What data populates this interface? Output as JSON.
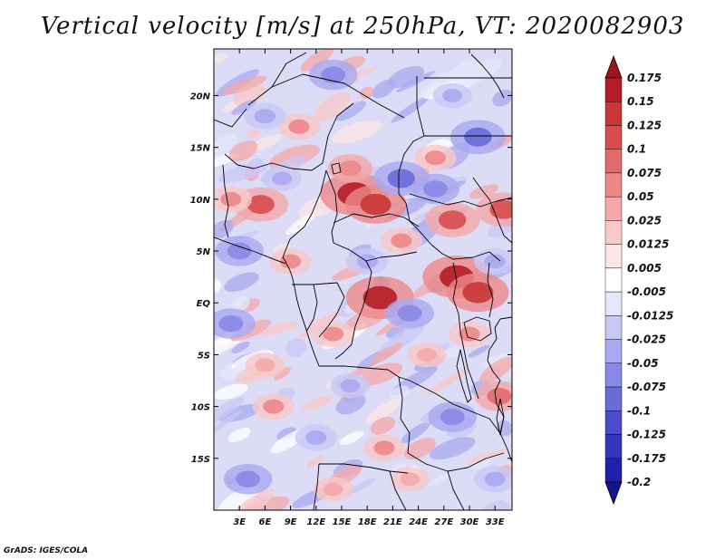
{
  "chart_data": {
    "type": "heatmap",
    "title": "Vertical velocity [m/s] at 250hPa, VT: 2020082903",
    "variable": "Vertical velocity",
    "units": "m/s",
    "level": "250hPa",
    "valid_time": "2020082903",
    "x_axis": {
      "min": 0,
      "max": 35,
      "ticks": [
        3,
        6,
        9,
        12,
        15,
        18,
        21,
        24,
        27,
        30,
        33
      ],
      "tick_labels": [
        "3E",
        "6E",
        "9E",
        "12E",
        "15E",
        "18E",
        "21E",
        "24E",
        "27E",
        "30E",
        "33E"
      ]
    },
    "y_axis": {
      "min": -20,
      "max": 24.5,
      "ticks": [
        20,
        15,
        10,
        5,
        0,
        -5,
        -10,
        -15
      ],
      "tick_labels": [
        "20N",
        "15N",
        "10N",
        "5N",
        "EQ",
        "5S",
        "10S",
        "15S"
      ]
    },
    "colorbar": {
      "orientation": "vertical",
      "levels": [
        0.175,
        0.15,
        0.125,
        0.1,
        0.075,
        0.05,
        0.025,
        0.0125,
        0.005,
        -0.005,
        -0.0125,
        -0.025,
        -0.05,
        -0.075,
        -0.1,
        -0.125,
        -0.175,
        -0.2
      ],
      "labels": [
        "0.175",
        "0.15",
        "0.125",
        "0.1",
        "0.075",
        "0.05",
        "0.025",
        "0.0125",
        "0.005",
        "-0.005",
        "-0.0125",
        "-0.025",
        "-0.05",
        "-0.075",
        "-0.1",
        "-0.125",
        "-0.175",
        "-0.2"
      ],
      "colors": [
        "#a0141e",
        "#b51c26",
        "#c83636",
        "#d84c4c",
        "#e36a6a",
        "#ec8888",
        "#f4a8a8",
        "#f9c8c8",
        "#fde6e6",
        "#ffffff",
        "#e6e6fb",
        "#c8c8f6",
        "#a9a9ef",
        "#8888e6",
        "#6a6ad9",
        "#4c4cc9",
        "#3636b8",
        "#2020a8",
        "#14148c"
      ]
    },
    "hotspots": [
      {
        "lon": 16.5,
        "lat": 10.5,
        "value": 0.15
      },
      {
        "lon": 19.0,
        "lat": 9.5,
        "value": 0.125
      },
      {
        "lon": 19.5,
        "lat": 0.5,
        "value": 0.15
      },
      {
        "lon": 28.5,
        "lat": 2.5,
        "value": 0.15
      },
      {
        "lon": 31.0,
        "lat": 1.0,
        "value": 0.125
      },
      {
        "lon": 28.0,
        "lat": 8.0,
        "value": 0.1
      },
      {
        "lon": 5.5,
        "lat": 9.5,
        "value": 0.1
      },
      {
        "lon": 34.0,
        "lat": 9.0,
        "value": 0.1
      },
      {
        "lon": 33.5,
        "lat": -9.0,
        "value": 0.075
      },
      {
        "lon": 9.0,
        "lat": 4.0,
        "value": 0.05
      },
      {
        "lon": 2.0,
        "lat": 10.0,
        "value": 0.05
      },
      {
        "lon": 22.0,
        "lat": 6.0,
        "value": 0.05
      },
      {
        "lon": 14.0,
        "lat": -3.0,
        "value": 0.05
      },
      {
        "lon": 7.0,
        "lat": -10.0,
        "value": 0.05
      },
      {
        "lon": 30.0,
        "lat": -3.0,
        "value": 0.05
      },
      {
        "lon": 26.0,
        "lat": 14.0,
        "value": 0.05
      },
      {
        "lon": 10.0,
        "lat": 17.0,
        "value": 0.05
      },
      {
        "lon": 20.0,
        "lat": -14.0,
        "value": 0.05
      },
      {
        "lon": 25.0,
        "lat": -5.0,
        "value": 0.04
      },
      {
        "lon": 16.0,
        "lat": 13.0,
        "value": 0.06
      },
      {
        "lon": 6.0,
        "lat": -6.0,
        "value": 0.04
      },
      {
        "lon": 23.0,
        "lat": -17.0,
        "value": 0.04
      },
      {
        "lon": 14.0,
        "lat": -18.0,
        "value": 0.04
      },
      {
        "lon": 22.0,
        "lat": 12.0,
        "value": -0.1
      },
      {
        "lon": 26.0,
        "lat": 11.0,
        "value": -0.075
      },
      {
        "lon": 31.0,
        "lat": 16.0,
        "value": -0.1
      },
      {
        "lon": 3.0,
        "lat": 5.0,
        "value": -0.075
      },
      {
        "lon": 2.0,
        "lat": -2.0,
        "value": -0.075
      },
      {
        "lon": 23.0,
        "lat": -1.0,
        "value": -0.075
      },
      {
        "lon": 28.0,
        "lat": -11.0,
        "value": -0.075
      },
      {
        "lon": 14.0,
        "lat": 22.0,
        "value": -0.075
      },
      {
        "lon": 6.0,
        "lat": 18.0,
        "value": -0.05
      },
      {
        "lon": 4.0,
        "lat": -17.0,
        "value": -0.075
      },
      {
        "lon": 12.0,
        "lat": -13.0,
        "value": -0.05
      },
      {
        "lon": 33.0,
        "lat": 4.0,
        "value": -0.05
      },
      {
        "lon": 18.0,
        "lat": 4.0,
        "value": -0.05
      },
      {
        "lon": 8.0,
        "lat": 12.0,
        "value": -0.04
      },
      {
        "lon": 28.0,
        "lat": 20.0,
        "value": -0.04
      },
      {
        "lon": 33.0,
        "lat": -17.0,
        "value": -0.05
      },
      {
        "lon": 16.0,
        "lat": -8.0,
        "value": -0.04
      }
    ]
  },
  "credit": "GrADS: IGES/COLA",
  "colors": {
    "boundary": "#000000",
    "frame": "#000000",
    "background": "#ffffff"
  }
}
